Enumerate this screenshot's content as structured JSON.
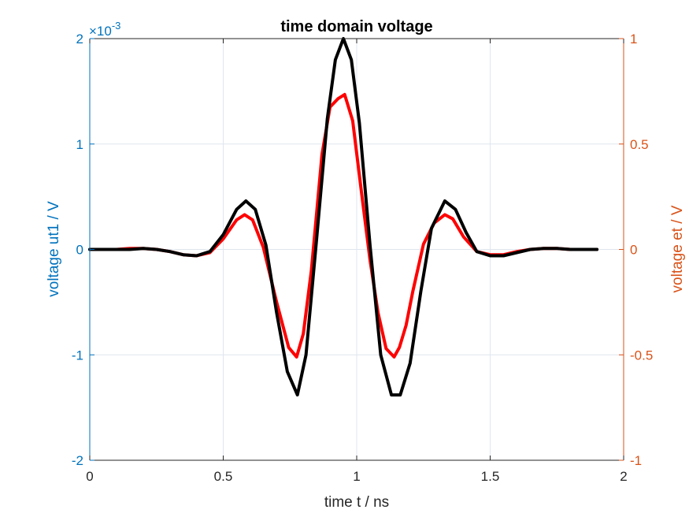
{
  "chart_data": {
    "type": "line",
    "title": "time domain voltage",
    "xlabel": "time t / ns",
    "ylabel_left": "voltage ut1 / V",
    "ylabel_right": "voltage et / V",
    "left_exponent_base": "×10",
    "left_exponent_power": "-3",
    "xlim": [
      0,
      2
    ],
    "ylim_left": [
      -2,
      2
    ],
    "ylim_right": [
      -1,
      1
    ],
    "x_ticks": [
      0,
      0.5,
      1,
      1.5,
      2
    ],
    "x_tick_labels": [
      "0",
      "0.5",
      "1",
      "1.5",
      "2"
    ],
    "y_left_ticks": [
      -2,
      -1,
      0,
      1,
      2
    ],
    "y_left_tick_labels": [
      "-2",
      "-1",
      "0",
      "1",
      "2"
    ],
    "y_right_ticks": [
      -1,
      -0.5,
      0,
      0.5,
      1
    ],
    "y_right_tick_labels": [
      "-1",
      "-0.5",
      "0",
      "0.5",
      "1"
    ],
    "grid": true,
    "colors": {
      "left_axis": "#0072BD",
      "right_axis": "#D95319",
      "series_ut1": "#ff0000",
      "series_et": "#000000",
      "grid": "#dfe6ee",
      "frame": "#262626"
    },
    "series": [
      {
        "axis": "left",
        "x": [
          0,
          0.05,
          0.1,
          0.15,
          0.2,
          0.25,
          0.3,
          0.35,
          0.4,
          0.45,
          0.5,
          0.55,
          0.58,
          0.61,
          0.65,
          0.7,
          0.745,
          0.775,
          0.8,
          0.83,
          0.87,
          0.9,
          0.93,
          0.955,
          0.985,
          1.015,
          1.05,
          1.08,
          1.11,
          1.14,
          1.16,
          1.185,
          1.21,
          1.25,
          1.29,
          1.33,
          1.36,
          1.4,
          1.45,
          1.5,
          1.55,
          1.6,
          1.65,
          1.7,
          1.75,
          1.8,
          1.85,
          1.9
        ],
        "y": [
          0,
          0,
          0,
          0.01,
          0.01,
          0,
          -0.02,
          -0.05,
          -0.06,
          -0.03,
          0.1,
          0.28,
          0.33,
          0.28,
          0.02,
          -0.5,
          -0.93,
          -1.02,
          -0.8,
          -0.2,
          0.9,
          1.35,
          1.43,
          1.47,
          1.22,
          0.6,
          -0.1,
          -0.6,
          -0.94,
          -1.02,
          -0.93,
          -0.72,
          -0.4,
          0.05,
          0.25,
          0.33,
          0.29,
          0.12,
          -0.02,
          -0.05,
          -0.05,
          -0.02,
          0,
          0.01,
          0.01,
          0,
          0,
          0
        ]
      },
      {
        "axis": "right",
        "x": [
          0,
          0.05,
          0.1,
          0.15,
          0.2,
          0.25,
          0.3,
          0.35,
          0.4,
          0.45,
          0.5,
          0.55,
          0.585,
          0.62,
          0.66,
          0.7,
          0.74,
          0.778,
          0.81,
          0.85,
          0.89,
          0.92,
          0.95,
          0.98,
          1.01,
          1.05,
          1.09,
          1.13,
          1.163,
          1.2,
          1.24,
          1.28,
          1.33,
          1.37,
          1.41,
          1.45,
          1.5,
          1.55,
          1.6,
          1.65,
          1.7,
          1.75,
          1.8,
          1.85,
          1.9
        ],
        "y": [
          0,
          0,
          0,
          0,
          0.005,
          0,
          -0.01,
          -0.025,
          -0.03,
          -0.01,
          0.07,
          0.19,
          0.23,
          0.19,
          0.02,
          -0.3,
          -0.58,
          -0.69,
          -0.5,
          0.05,
          0.62,
          0.9,
          1.0,
          0.9,
          0.6,
          0.02,
          -0.5,
          -0.69,
          -0.69,
          -0.54,
          -0.2,
          0.1,
          0.23,
          0.19,
          0.08,
          -0.01,
          -0.03,
          -0.03,
          -0.015,
          0,
          0.005,
          0.005,
          0,
          0,
          0
        ]
      }
    ]
  }
}
